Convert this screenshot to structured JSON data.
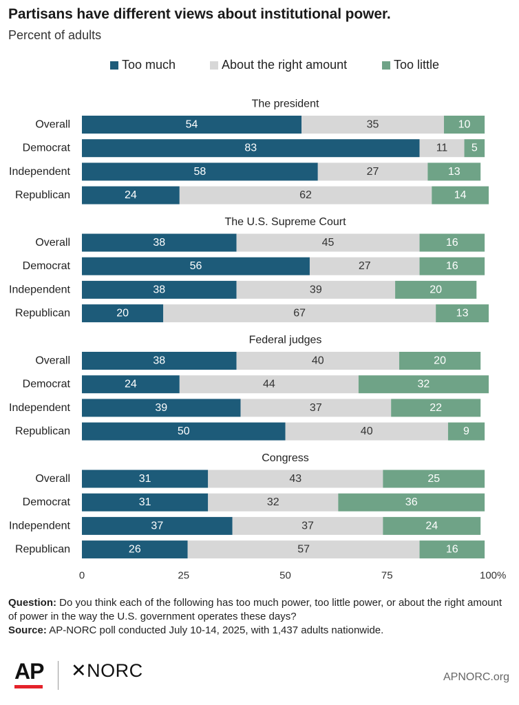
{
  "title": "Partisans have different views about institutional power.",
  "subtitle": "Percent of adults",
  "colors": {
    "too_much": "#1d5b79",
    "right_amount": "#d7d7d7",
    "too_little": "#6fa387"
  },
  "legend": [
    "Too much",
    "About the right amount",
    "Too little"
  ],
  "chart_data": {
    "type": "bar",
    "orientation": "horizontal",
    "stacked": true,
    "series_names": [
      "Too much",
      "About the right amount",
      "Too little"
    ],
    "groups": [
      {
        "title": "The president",
        "rows": [
          {
            "label": "Overall",
            "values": [
              54,
              35,
              10
            ]
          },
          {
            "label": "Democrat",
            "values": [
              83,
              11,
              5
            ]
          },
          {
            "label": "Independent",
            "values": [
              58,
              27,
              13
            ]
          },
          {
            "label": "Republican",
            "values": [
              24,
              62,
              14
            ]
          }
        ]
      },
      {
        "title": "The U.S. Supreme Court",
        "rows": [
          {
            "label": "Overall",
            "values": [
              38,
              45,
              16
            ]
          },
          {
            "label": "Democrat",
            "values": [
              56,
              27,
              16
            ]
          },
          {
            "label": "Independent",
            "values": [
              38,
              39,
              20
            ]
          },
          {
            "label": "Republican",
            "values": [
              20,
              67,
              13
            ]
          }
        ]
      },
      {
        "title": "Federal judges",
        "rows": [
          {
            "label": "Overall",
            "values": [
              38,
              40,
              20
            ]
          },
          {
            "label": "Democrat",
            "values": [
              24,
              44,
              32
            ]
          },
          {
            "label": "Independent",
            "values": [
              39,
              37,
              22
            ]
          },
          {
            "label": "Republican",
            "values": [
              50,
              40,
              9
            ]
          }
        ]
      },
      {
        "title": "Congress",
        "rows": [
          {
            "label": "Overall",
            "values": [
              31,
              43,
              25
            ]
          },
          {
            "label": "Democrat",
            "values": [
              31,
              32,
              36
            ]
          },
          {
            "label": "Independent",
            "values": [
              37,
              37,
              24
            ]
          },
          {
            "label": "Republican",
            "values": [
              26,
              57,
              16
            ]
          }
        ]
      }
    ],
    "xlim": [
      0,
      100
    ],
    "xticks": [
      "0",
      "25",
      "50",
      "75",
      "100%"
    ],
    "grid": false,
    "legend_position": "top"
  },
  "footnote": {
    "question_label": "Question:",
    "question_text": " Do you think each of the following has too much power, too little power, or about the right amount of power in the way the U.S. government operates these days?",
    "source_label": "Source:",
    "source_text": " AP-NORC poll conducted July 10-14, 2025, with 1,437 adults nationwide."
  },
  "logos": {
    "ap": "AP",
    "norc": "NORC",
    "norc_mark": "✕"
  },
  "site": "APNORC.org"
}
